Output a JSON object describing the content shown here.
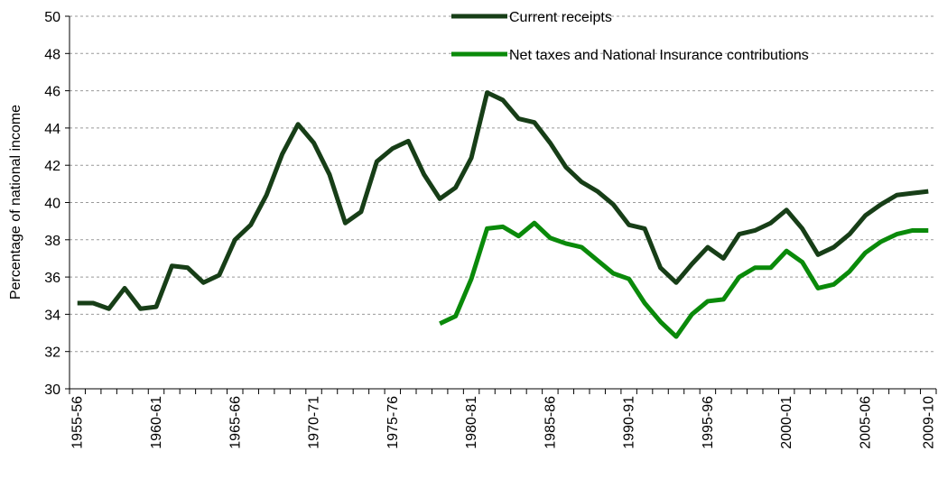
{
  "chart_data": {
    "type": "line",
    "y_label": "Percentage of national income",
    "categories": [
      "1955-56",
      null,
      null,
      null,
      null,
      "1960-61",
      null,
      null,
      null,
      null,
      "1965-66",
      null,
      null,
      null,
      null,
      "1970-71",
      null,
      null,
      null,
      null,
      "1975-76",
      null,
      null,
      null,
      null,
      "1980-81",
      null,
      null,
      null,
      null,
      "1985-86",
      null,
      null,
      null,
      null,
      "1990-91",
      null,
      null,
      null,
      null,
      "1995-96",
      null,
      null,
      null,
      null,
      "2000-01",
      null,
      null,
      null,
      null,
      "2005-06",
      null,
      null,
      null,
      "2009-10"
    ],
    "series": [
      {
        "name": "Current receipts",
        "color": "#173e17",
        "values": [
          34.6,
          34.6,
          34.3,
          35.4,
          34.3,
          34.4,
          36.6,
          36.5,
          35.7,
          36.1,
          38.0,
          38.8,
          40.4,
          42.6,
          44.2,
          43.2,
          41.5,
          38.9,
          39.5,
          42.2,
          42.9,
          43.3,
          41.5,
          40.2,
          40.8,
          42.4,
          45.9,
          45.5,
          44.5,
          44.3,
          43.2,
          41.9,
          41.1,
          40.6,
          39.9,
          38.8,
          38.6,
          36.5,
          35.7,
          36.7,
          37.6,
          37.0,
          38.3,
          38.5,
          38.9,
          39.6,
          38.6,
          37.2,
          37.6,
          38.3,
          39.3,
          39.9,
          40.4,
          40.5,
          40.6
        ]
      },
      {
        "name": "Net taxes and National Insurance contributions",
        "color": "#0a8a0a",
        "values": [
          null,
          null,
          null,
          null,
          null,
          null,
          null,
          null,
          null,
          null,
          null,
          null,
          null,
          null,
          null,
          null,
          null,
          null,
          null,
          null,
          null,
          null,
          null,
          33.5,
          33.9,
          35.9,
          38.6,
          38.7,
          38.2,
          38.9,
          38.1,
          37.8,
          37.6,
          36.9,
          36.2,
          35.9,
          34.6,
          33.6,
          32.8,
          34.0,
          34.7,
          34.8,
          36.0,
          36.5,
          36.5,
          37.4,
          36.8,
          35.4,
          35.6,
          36.3,
          37.3,
          37.9,
          38.3,
          38.5,
          38.5
        ]
      }
    ],
    "ylim": [
      30,
      50
    ],
    "yticks": [
      30,
      32,
      34,
      36,
      38,
      40,
      42,
      44,
      46,
      48,
      50
    ],
    "grid": true
  }
}
